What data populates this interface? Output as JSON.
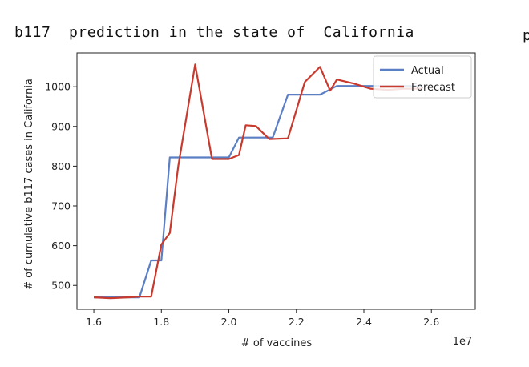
{
  "page": {
    "title": "b117  prediction in the state of  California",
    "right_fragment": "p"
  },
  "chart_data": {
    "type": "line",
    "title": "",
    "xlabel": "# of vaccines",
    "ylabel": "# of cumulative b117 cases in California",
    "x_offset_label": "1e7",
    "xlim": [
      1.55,
      2.73
    ],
    "ylim": [
      440,
      1085
    ],
    "x_ticks": [
      1.6,
      1.8,
      2.0,
      2.2,
      2.4,
      2.6
    ],
    "x_tick_labels": [
      "1.6",
      "1.8",
      "2.0",
      "2.2",
      "2.4",
      "2.6"
    ],
    "y_ticks": [
      500,
      600,
      700,
      800,
      900,
      1000
    ],
    "y_tick_labels": [
      "500",
      "600",
      "700",
      "800",
      "900",
      "1000"
    ],
    "legend_position": "upper right",
    "series": [
      {
        "name": "Actual",
        "color": "#5b7fc4",
        "x": [
          1.6,
          1.65,
          1.7,
          1.735,
          1.77,
          1.8,
          1.825,
          1.875,
          1.925,
          1.975,
          2.0,
          2.03,
          2.08,
          2.13,
          2.175,
          2.225,
          2.27,
          2.32,
          2.37,
          2.42,
          2.47,
          2.52,
          2.57
        ],
        "y": [
          470,
          470,
          470,
          470,
          563,
          563,
          822,
          822,
          822,
          822,
          822,
          872,
          872,
          872,
          980,
          980,
          980,
          1002,
          1002,
          1002,
          1002,
          1002,
          1002
        ]
      },
      {
        "name": "Forecast",
        "color": "#c83a2e",
        "x": [
          1.6,
          1.65,
          1.7,
          1.735,
          1.77,
          1.8,
          1.825,
          1.85,
          1.9,
          1.95,
          2.0,
          2.03,
          2.05,
          2.08,
          2.12,
          2.175,
          2.225,
          2.27,
          2.3,
          2.32,
          2.37,
          2.42,
          2.47,
          2.52,
          2.57
        ],
        "y": [
          470,
          468,
          470,
          472,
          472,
          603,
          632,
          800,
          1056,
          818,
          818,
          828,
          903,
          901,
          868,
          870,
          1012,
          1050,
          990,
          1018,
          1008,
          995,
          992,
          995,
          995
        ]
      }
    ]
  }
}
